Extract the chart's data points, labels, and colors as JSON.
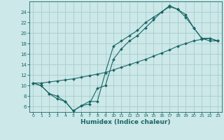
{
  "xlabel": "Humidex (Indice chaleur)",
  "background_color": "#cce8e8",
  "grid_color": "#aacccc",
  "line_color": "#1a6666",
  "xlim": [
    -0.5,
    23.5
  ],
  "ylim": [
    5,
    26
  ],
  "xticks": [
    0,
    1,
    2,
    3,
    4,
    5,
    6,
    7,
    8,
    9,
    10,
    11,
    12,
    13,
    14,
    15,
    16,
    17,
    18,
    19,
    20,
    21,
    22,
    23
  ],
  "yticks": [
    6,
    8,
    10,
    12,
    14,
    16,
    18,
    20,
    22,
    24
  ],
  "line1_x": [
    0,
    1,
    2,
    3,
    4,
    5,
    6,
    7,
    8,
    9,
    10,
    11,
    12,
    13,
    14,
    15,
    16,
    17,
    18,
    19,
    20,
    21,
    22,
    23
  ],
  "line1_y": [
    10.5,
    10.0,
    8.5,
    8.0,
    7.0,
    5.2,
    6.2,
    7.0,
    7.0,
    12.5,
    17.5,
    18.5,
    19.5,
    20.5,
    22.0,
    23.0,
    24.0,
    25.0,
    24.5,
    23.5,
    21.0,
    19.0,
    19.0,
    18.5
  ],
  "line2_x": [
    0,
    1,
    2,
    3,
    4,
    5,
    6,
    7,
    8,
    9,
    10,
    11,
    12,
    13,
    14,
    15,
    16,
    17,
    18,
    19,
    20,
    21,
    22,
    23
  ],
  "line2_y": [
    10.5,
    10.0,
    8.5,
    7.5,
    7.0,
    5.2,
    6.2,
    6.5,
    9.5,
    10.0,
    15.0,
    17.0,
    18.5,
    19.5,
    21.0,
    22.5,
    24.0,
    25.2,
    24.5,
    23.0,
    21.0,
    19.0,
    18.5,
    18.5
  ],
  "line3_x": [
    0,
    1,
    2,
    3,
    4,
    5,
    6,
    7,
    8,
    9,
    10,
    11,
    12,
    13,
    14,
    15,
    16,
    17,
    18,
    19,
    20,
    21,
    22,
    23
  ],
  "line3_y": [
    10.5,
    10.5,
    10.7,
    10.9,
    11.1,
    11.3,
    11.6,
    11.9,
    12.2,
    12.5,
    13.0,
    13.5,
    14.0,
    14.5,
    15.0,
    15.6,
    16.2,
    16.8,
    17.5,
    18.0,
    18.5,
    18.8,
    19.0,
    18.5
  ]
}
